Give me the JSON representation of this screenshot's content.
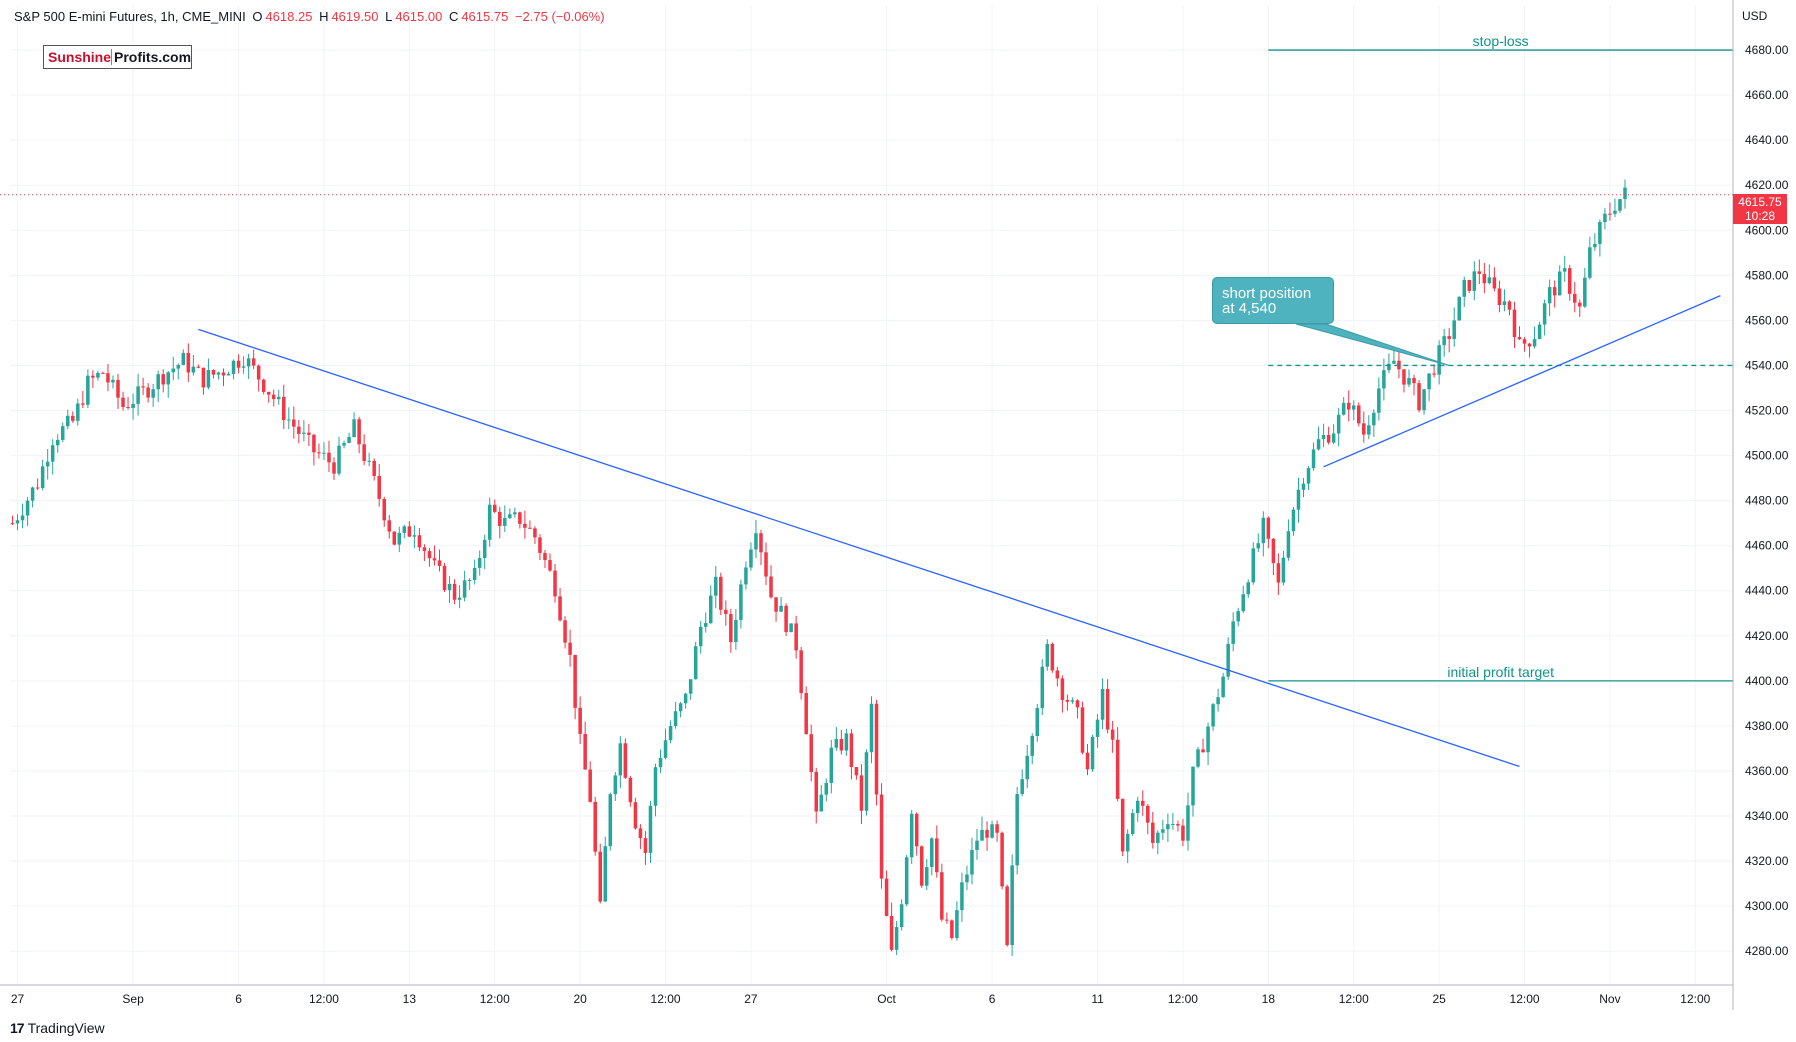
{
  "header": {
    "symbol": "S&P 500 E-mini Futures, 1h, CME_MINI",
    "open_label": "O",
    "open": "4618.25",
    "high_label": "H",
    "high": "4619.50",
    "low_label": "L",
    "low": "4615.00",
    "close_label": "C",
    "close": "4615.75",
    "change": "−2.75 (−0.06%)"
  },
  "logo": {
    "part1": "Sunshine",
    "part2": "Profits.com"
  },
  "footer": {
    "brand_mark": "17",
    "brand": "TradingView"
  },
  "currency": "USD",
  "last_price": {
    "value": "4615.75",
    "countdown": "10:28"
  },
  "callout": {
    "line1": "short position",
    "line2": "at 4,540"
  },
  "colors": {
    "up": "#26a69a",
    "down": "#f23645",
    "trend": "#2962ff",
    "level": "#0e9488",
    "grid": "#f0f3fa"
  },
  "chart_data": {
    "type": "candlestick",
    "title": "S&P 500 E-mini Futures, 1h, CME_MINI",
    "ylim": [
      4265,
      4700
    ],
    "yticks": [
      4280,
      4300,
      4320,
      4340,
      4360,
      4380,
      4400,
      4420,
      4440,
      4460,
      4480,
      4500,
      4520,
      4540,
      4560,
      4580,
      4600,
      4620,
      4640,
      4660,
      4680
    ],
    "ytick_labels": [
      "4280.00",
      "4300.00",
      "4320.00",
      "4340.00",
      "4360.00",
      "4380.00",
      "4400.00",
      "4420.00",
      "4440.00",
      "4460.00",
      "4480.00",
      "4500.00",
      "4520.00",
      "4540.00",
      "4560.00",
      "4580.00",
      "4600.00",
      "4620.00",
      "4640.00",
      "4660.00",
      "4680.00"
    ],
    "xticks": [
      {
        "label": "27",
        "bar": 1
      },
      {
        "label": "Sep",
        "bar": 24
      },
      {
        "label": "6",
        "bar": 45
      },
      {
        "label": "12:00",
        "bar": 62
      },
      {
        "label": "13",
        "bar": 79
      },
      {
        "label": "12:00",
        "bar": 96
      },
      {
        "label": "20",
        "bar": 113
      },
      {
        "label": "12:00",
        "bar": 130
      },
      {
        "label": "27",
        "bar": 147
      },
      {
        "label": "Oct",
        "bar": 174
      },
      {
        "label": "6",
        "bar": 195
      },
      {
        "label": "11",
        "bar": 216
      },
      {
        "label": "12:00",
        "bar": 233
      },
      {
        "label": "18",
        "bar": 250
      },
      {
        "label": "12:00",
        "bar": 267
      },
      {
        "label": "25",
        "bar": 284
      },
      {
        "label": "12:00",
        "bar": 301
      },
      {
        "label": "Nov",
        "bar": 318
      },
      {
        "label": "12:00",
        "bar": 335
      }
    ],
    "bar_count": 343,
    "anchors": [
      [
        0,
        4470
      ],
      [
        5,
        4488
      ],
      [
        8,
        4508
      ],
      [
        12,
        4515
      ],
      [
        15,
        4532
      ],
      [
        18,
        4537
      ],
      [
        22,
        4522
      ],
      [
        26,
        4528
      ],
      [
        30,
        4536
      ],
      [
        34,
        4542
      ],
      [
        38,
        4534
      ],
      [
        42,
        4538
      ],
      [
        46,
        4544
      ],
      [
        50,
        4532
      ],
      [
        55,
        4516
      ],
      [
        60,
        4502
      ],
      [
        64,
        4496
      ],
      [
        68,
        4512
      ],
      [
        72,
        4488
      ],
      [
        76,
        4462
      ],
      [
        80,
        4468
      ],
      [
        84,
        4450
      ],
      [
        88,
        4438
      ],
      [
        92,
        4446
      ],
      [
        95,
        4476
      ],
      [
        98,
        4470
      ],
      [
        101,
        4472
      ],
      [
        104,
        4464
      ],
      [
        108,
        4442
      ],
      [
        111,
        4410
      ],
      [
        113,
        4372
      ],
      [
        115,
        4348
      ],
      [
        117,
        4298
      ],
      [
        119,
        4352
      ],
      [
        121,
        4372
      ],
      [
        124,
        4338
      ],
      [
        126,
        4324
      ],
      [
        128,
        4362
      ],
      [
        131,
        4380
      ],
      [
        134,
        4392
      ],
      [
        137,
        4424
      ],
      [
        140,
        4442
      ],
      [
        143,
        4418
      ],
      [
        146,
        4454
      ],
      [
        148,
        4470
      ],
      [
        151,
        4438
      ],
      [
        154,
        4426
      ],
      [
        156,
        4416
      ],
      [
        158,
        4380
      ],
      [
        160,
        4338
      ],
      [
        163,
        4368
      ],
      [
        166,
        4374
      ],
      [
        169,
        4344
      ],
      [
        171,
        4388
      ],
      [
        173,
        4310
      ],
      [
        175,
        4278
      ],
      [
        177,
        4304
      ],
      [
        179,
        4344
      ],
      [
        181,
        4312
      ],
      [
        183,
        4330
      ],
      [
        185,
        4294
      ],
      [
        187,
        4286
      ],
      [
        189,
        4308
      ],
      [
        192,
        4330
      ],
      [
        194,
        4334
      ],
      [
        196,
        4330
      ],
      [
        198,
        4280
      ],
      [
        200,
        4350
      ],
      [
        203,
        4380
      ],
      [
        206,
        4414
      ],
      [
        209,
        4396
      ],
      [
        212,
        4384
      ],
      [
        214,
        4360
      ],
      [
        217,
        4394
      ],
      [
        219,
        4370
      ],
      [
        221,
        4322
      ],
      [
        224,
        4350
      ],
      [
        227,
        4328
      ],
      [
        230,
        4340
      ],
      [
        233,
        4332
      ],
      [
        235,
        4358
      ],
      [
        238,
        4380
      ],
      [
        241,
        4402
      ],
      [
        243,
        4426
      ],
      [
        246,
        4448
      ],
      [
        249,
        4468
      ],
      [
        252,
        4442
      ],
      [
        254,
        4470
      ],
      [
        257,
        4492
      ],
      [
        260,
        4506
      ],
      [
        263,
        4512
      ],
      [
        266,
        4524
      ],
      [
        269,
        4510
      ],
      [
        272,
        4530
      ],
      [
        275,
        4542
      ],
      [
        278,
        4532
      ],
      [
        280,
        4524
      ],
      [
        283,
        4540
      ],
      [
        286,
        4554
      ],
      [
        289,
        4574
      ],
      [
        292,
        4582
      ],
      [
        295,
        4572
      ],
      [
        298,
        4566
      ],
      [
        300,
        4548
      ],
      [
        303,
        4554
      ],
      [
        306,
        4572
      ],
      [
        309,
        4580
      ],
      [
        312,
        4565
      ],
      [
        314,
        4590
      ],
      [
        317,
        4605
      ],
      [
        319,
        4612
      ],
      [
        321,
        4616
      ]
    ],
    "horizontal_levels": [
      {
        "label": "stop-loss",
        "value": 4680
      },
      {
        "label": "initial profit target",
        "value": 4400
      },
      {
        "label": "",
        "value": 4540,
        "style": "dashed"
      }
    ],
    "last_price_line": 4615.75,
    "trendlines": [
      {
        "from": {
          "bar": 37,
          "value": 4556
        },
        "to": {
          "bar": 300,
          "value": 4362
        }
      },
      {
        "from": {
          "bar": 261,
          "value": 4495
        },
        "to": {
          "bar": 340,
          "value": 4571
        }
      }
    ],
    "annotations": [
      {
        "text": "short position at 4,540",
        "bar": 286,
        "value": 4540
      }
    ]
  }
}
